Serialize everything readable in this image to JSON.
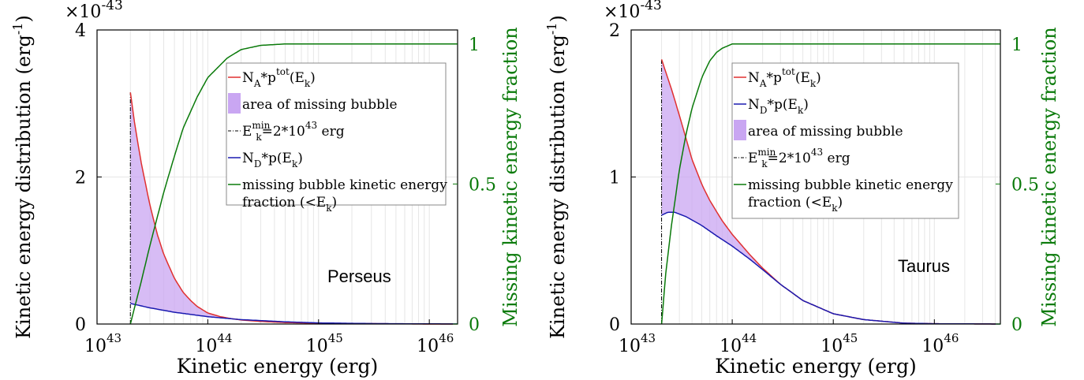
{
  "chart_data": [
    {
      "type": "line",
      "panel": "left",
      "annotation": "Perseus",
      "xlabel": "Kinetic energy (erg)",
      "ylabel": "Kinetic energy distribution (erg",
      "ylabel_sup": "-1",
      "ylabel_close": ")",
      "y2label": "Missing kinetic energy fraction",
      "y_multiplier": "×10",
      "y_multiplier_exp": "-43",
      "xscale": "log",
      "xlim": [
        1e+43,
        1.8e+46
      ],
      "ylim": [
        0,
        4
      ],
      "y2lim": [
        0,
        1.05
      ],
      "xticks": [
        {
          "base": "10",
          "exp": "43",
          "value": 1e+43
        },
        {
          "base": "10",
          "exp": "44",
          "value": 1e+44
        },
        {
          "base": "10",
          "exp": "45",
          "value": 1e+45
        },
        {
          "base": "10",
          "exp": "46",
          "value": 1e+46
        }
      ],
      "yticks": [
        "0",
        "2",
        "4"
      ],
      "y2ticks": [
        "0",
        "0.5",
        "1"
      ],
      "emin": 2e+43,
      "series": [
        {
          "name": "N_A*p^tot(E_k)",
          "color": "#e03030",
          "x": [
            2e+43,
            2.2e+43,
            2.5e+43,
            3e+43,
            3.5e+43,
            4e+43,
            5e+43,
            6e+43,
            7e+43,
            8e+43,
            1e+44,
            1.3e+44,
            1.6e+44,
            2e+44,
            3e+44,
            5e+44,
            1e+45,
            1e+46,
            1.8e+46
          ],
          "y": [
            3.15,
            2.7,
            2.2,
            1.62,
            1.22,
            0.95,
            0.62,
            0.43,
            0.32,
            0.24,
            0.15,
            0.1,
            0.075,
            0.055,
            0.035,
            0.02,
            0.01,
            0.0,
            0.0
          ]
        },
        {
          "name": "N_D*p(E_k)",
          "color": "#1a1ab0",
          "x": [
            2e+43,
            3e+43,
            5e+43,
            1e+44,
            2e+44,
            5e+44,
            1e+45,
            3e+45,
            1e+46,
            1.8e+46
          ],
          "y": [
            0.28,
            0.22,
            0.16,
            0.1,
            0.06,
            0.03,
            0.015,
            0.006,
            0.002,
            0.001
          ]
        },
        {
          "name": "missing bubble kinetic energy fraction (<E_k)",
          "color": "#0a7a0a",
          "axis": "y2",
          "x": [
            2e+43,
            2.5e+43,
            3e+43,
            4e+43,
            5e+43,
            6e+43,
            8e+43,
            1e+44,
            1.5e+44,
            2e+44,
            3e+44,
            5e+44,
            1e+45,
            1e+46,
            1.8e+46
          ],
          "y": [
            0.0,
            0.15,
            0.28,
            0.47,
            0.6,
            0.7,
            0.81,
            0.88,
            0.95,
            0.98,
            0.995,
            1.0,
            1.0,
            1.0,
            1.0
          ]
        }
      ],
      "legend": {
        "placement": "top-right",
        "entries": [
          {
            "kind": "line-red",
            "label": "N",
            "sub": "A",
            "mid": "*p",
            "sup": "tot",
            "tail": "(E",
            "sub2": "k",
            "end": ")"
          },
          {
            "kind": "patch",
            "label": "area of missing bubble"
          },
          {
            "kind": "dashdot",
            "label": "E",
            "sub": "k",
            "sup": "min",
            "tail": "=2*10",
            "sup2": "43",
            "end": " erg"
          },
          {
            "kind": "line-blue",
            "label": "N",
            "sub": "D",
            "mid": "*p(E",
            "sub2": "k",
            "end": ")"
          },
          {
            "kind": "line-green",
            "label": "missing bubble kinetic energy",
            "line2": "fraction (<E",
            "sub2": "k",
            "end": ")"
          }
        ]
      }
    },
    {
      "type": "line",
      "panel": "right",
      "annotation": "Taurus",
      "xlabel": "Kinetic energy (erg)",
      "ylabel": "Kinetic energy distribution (erg",
      "ylabel_sup": "-1",
      "ylabel_close": ")",
      "y2label": "Missing kinetic energy fraction",
      "y_multiplier": "×10",
      "y_multiplier_exp": "-43",
      "xscale": "log",
      "xlim": [
        1e+43,
        4.5e+46
      ],
      "ylim": [
        0,
        2
      ],
      "y2lim": [
        0,
        1.05
      ],
      "xticks": [
        {
          "base": "10",
          "exp": "43",
          "value": 1e+43
        },
        {
          "base": "10",
          "exp": "44",
          "value": 1e+44
        },
        {
          "base": "10",
          "exp": "45",
          "value": 1e+45
        },
        {
          "base": "10",
          "exp": "46",
          "value": 1e+46
        }
      ],
      "yticks": [
        "0",
        "1",
        "2"
      ],
      "y2ticks": [
        "0",
        "0.5",
        "1"
      ],
      "emin": 2e+43,
      "series": [
        {
          "name": "N_A*p^tot(E_k)",
          "color": "#e03030",
          "x": [
            2e+43,
            2.5e+43,
            3e+43,
            4e+43,
            5e+43,
            6e+43,
            8e+43,
            1e+44,
            1.5e+44,
            2e+44,
            3e+44,
            5e+44,
            1e+45,
            2e+45,
            5e+45,
            1e+46,
            4.5e+46
          ],
          "y": [
            1.8,
            1.6,
            1.42,
            1.12,
            0.95,
            0.84,
            0.7,
            0.61,
            0.47,
            0.38,
            0.27,
            0.16,
            0.07,
            0.03,
            0.006,
            0.002,
            0.0
          ]
        },
        {
          "name": "N_D*p(E_k)",
          "color": "#1a1ab0",
          "x": [
            2e+43,
            2.3e+43,
            2.7e+43,
            3.5e+43,
            5e+43,
            7e+43,
            1e+44,
            1.5e+44,
            2e+44,
            3e+44,
            5e+44,
            1e+45,
            2e+45,
            5e+45,
            1e+46,
            4.5e+46
          ],
          "y": [
            0.74,
            0.76,
            0.76,
            0.73,
            0.67,
            0.6,
            0.53,
            0.44,
            0.37,
            0.27,
            0.16,
            0.07,
            0.03,
            0.006,
            0.002,
            0.0
          ]
        },
        {
          "name": "missing bubble kinetic energy fraction (<E_k)",
          "color": "#0a7a0a",
          "axis": "y2",
          "x": [
            2e+43,
            2.2e+43,
            2.5e+43,
            3e+43,
            3.5e+43,
            4e+43,
            5e+43,
            6e+43,
            7e+43,
            8e+43,
            1e+44,
            1.5e+44,
            2e+44,
            1e+45,
            4.5e+46
          ],
          "y": [
            0.0,
            0.18,
            0.35,
            0.55,
            0.68,
            0.77,
            0.88,
            0.94,
            0.97,
            0.985,
            1.0,
            1.0,
            1.0,
            1.0,
            1.0
          ]
        }
      ],
      "legend": {
        "placement": "top-right",
        "entries": [
          {
            "kind": "line-red",
            "label": "N",
            "sub": "A",
            "mid": "*p",
            "sup": "tot",
            "tail": "(E",
            "sub2": "k",
            "end": ")"
          },
          {
            "kind": "line-blue",
            "label": "N",
            "sub": "D",
            "mid": "*p(E",
            "sub2": "k",
            "end": ")"
          },
          {
            "kind": "patch",
            "label": "area of missing bubble"
          },
          {
            "kind": "dashdot",
            "label": "E",
            "sub": "k",
            "sup": "min",
            "tail": "=2*10",
            "sup2": "43",
            "end": " erg"
          },
          {
            "kind": "line-green",
            "label": "missing bubble kinetic energy",
            "line2": "fraction (<E",
            "sub2": "k",
            "end": ")"
          }
        ]
      }
    }
  ],
  "colors": {
    "red": "#e03030",
    "blue": "#1a1ab0",
    "green": "#0a7a0a",
    "fill": "#c9a6f2"
  }
}
